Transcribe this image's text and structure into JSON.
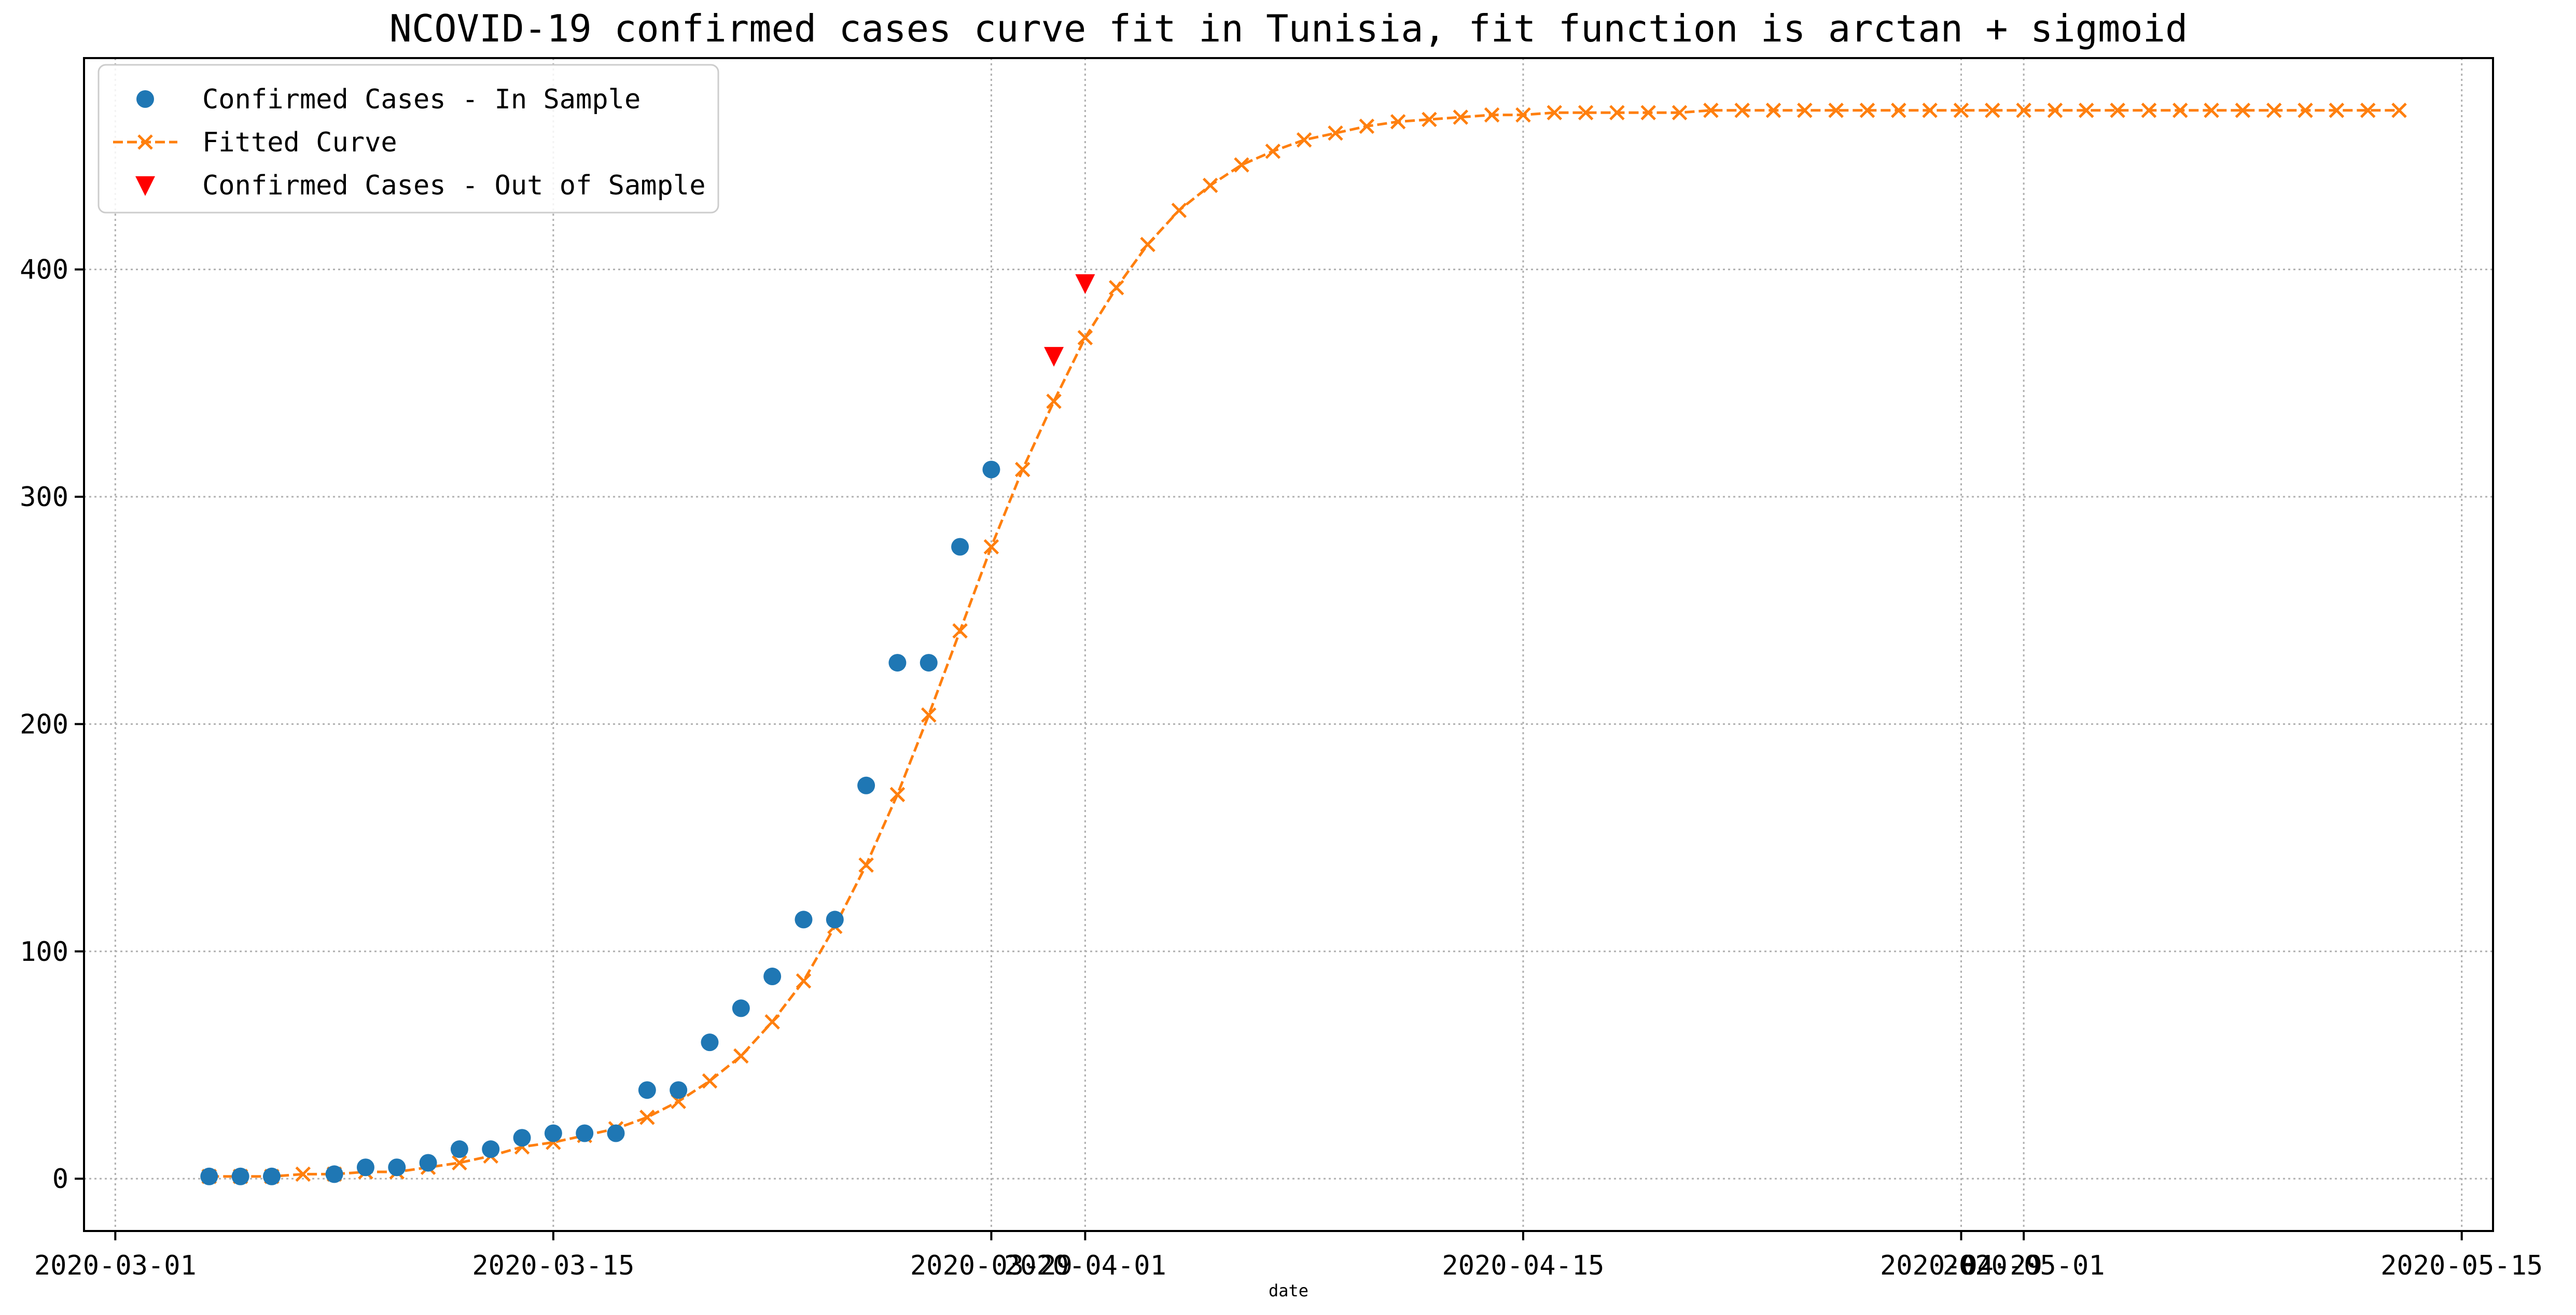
{
  "chart_data": {
    "type": "line",
    "title": "NCOVID-19 confirmed cases curve fit in Tunisia, fit function is arctan + sigmoid",
    "xlabel": "date",
    "ylabel": "",
    "x_axis_type": "date",
    "xlim": [
      "2020-02-29",
      "2020-05-16"
    ],
    "ylim": [
      -23,
      493
    ],
    "grid": true,
    "legend_position": "top-left",
    "x_ticks": [
      {
        "date": "2020-03-01",
        "label": "2020-03-01"
      },
      {
        "date": "2020-03-15",
        "label": "2020-03-15"
      },
      {
        "date": "2020-03-29",
        "label": "2020-03-29"
      },
      {
        "date": "2020-04-01",
        "label": "2020-04-01"
      },
      {
        "date": "2020-04-15",
        "label": "2020-04-15"
      },
      {
        "date": "2020-04-29",
        "label": "2020-04-29"
      },
      {
        "date": "2020-05-01",
        "label": "2020-05-01"
      },
      {
        "date": "2020-05-15",
        "label": "2020-05-15"
      }
    ],
    "y_ticks": [
      0,
      100,
      200,
      300,
      400
    ],
    "series": [
      {
        "name": "Confirmed Cases - In Sample",
        "kind": "scatter",
        "marker": "circle",
        "color": "#1f77b4",
        "points": [
          [
            "2020-03-04",
            1
          ],
          [
            "2020-03-05",
            1
          ],
          [
            "2020-03-06",
            1
          ],
          [
            "2020-03-08",
            2
          ],
          [
            "2020-03-09",
            5
          ],
          [
            "2020-03-10",
            5
          ],
          [
            "2020-03-11",
            7
          ],
          [
            "2020-03-12",
            13
          ],
          [
            "2020-03-13",
            13
          ],
          [
            "2020-03-14",
            18
          ],
          [
            "2020-03-15",
            20
          ],
          [
            "2020-03-16",
            20
          ],
          [
            "2020-03-17",
            20
          ],
          [
            "2020-03-18",
            39
          ],
          [
            "2020-03-19",
            39
          ],
          [
            "2020-03-20",
            60
          ],
          [
            "2020-03-21",
            75
          ],
          [
            "2020-03-22",
            89
          ],
          [
            "2020-03-23",
            114
          ],
          [
            "2020-03-24",
            114
          ],
          [
            "2020-03-25",
            173
          ],
          [
            "2020-03-26",
            227
          ],
          [
            "2020-03-27",
            227
          ],
          [
            "2020-03-28",
            278
          ],
          [
            "2020-03-29",
            312
          ]
        ]
      },
      {
        "name": "Fitted Curve",
        "kind": "line",
        "marker": "x",
        "line_style": "dashed",
        "color": "#ff7f0e",
        "points": [
          [
            "2020-03-04",
            1
          ],
          [
            "2020-03-05",
            1
          ],
          [
            "2020-03-06",
            1
          ],
          [
            "2020-03-07",
            2
          ],
          [
            "2020-03-08",
            2
          ],
          [
            "2020-03-09",
            3
          ],
          [
            "2020-03-10",
            3
          ],
          [
            "2020-03-11",
            5
          ],
          [
            "2020-03-12",
            7
          ],
          [
            "2020-03-13",
            10
          ],
          [
            "2020-03-14",
            14
          ],
          [
            "2020-03-15",
            16
          ],
          [
            "2020-03-16",
            19
          ],
          [
            "2020-03-17",
            22
          ],
          [
            "2020-03-18",
            27
          ],
          [
            "2020-03-19",
            34
          ],
          [
            "2020-03-20",
            43
          ],
          [
            "2020-03-21",
            54
          ],
          [
            "2020-03-22",
            69
          ],
          [
            "2020-03-23",
            87
          ],
          [
            "2020-03-24",
            111
          ],
          [
            "2020-03-25",
            138
          ],
          [
            "2020-03-26",
            169
          ],
          [
            "2020-03-27",
            204
          ],
          [
            "2020-03-28",
            241
          ],
          [
            "2020-03-29",
            278
          ],
          [
            "2020-03-30",
            312
          ],
          [
            "2020-03-31",
            342
          ],
          [
            "2020-04-01",
            370
          ],
          [
            "2020-04-02",
            392
          ],
          [
            "2020-04-03",
            411
          ],
          [
            "2020-04-04",
            426
          ],
          [
            "2020-04-05",
            437
          ],
          [
            "2020-04-06",
            446
          ],
          [
            "2020-04-07",
            452
          ],
          [
            "2020-04-08",
            457
          ],
          [
            "2020-04-09",
            460
          ],
          [
            "2020-04-10",
            463
          ],
          [
            "2020-04-11",
            465
          ],
          [
            "2020-04-12",
            466
          ],
          [
            "2020-04-13",
            467
          ],
          [
            "2020-04-14",
            468
          ],
          [
            "2020-04-15",
            468
          ],
          [
            "2020-04-16",
            469
          ],
          [
            "2020-04-17",
            469
          ],
          [
            "2020-04-18",
            469
          ],
          [
            "2020-04-19",
            469
          ],
          [
            "2020-04-20",
            469
          ],
          [
            "2020-04-21",
            470
          ],
          [
            "2020-04-22",
            470
          ],
          [
            "2020-04-23",
            470
          ],
          [
            "2020-04-24",
            470
          ],
          [
            "2020-04-25",
            470
          ],
          [
            "2020-04-26",
            470
          ],
          [
            "2020-04-27",
            470
          ],
          [
            "2020-04-28",
            470
          ],
          [
            "2020-04-29",
            470
          ],
          [
            "2020-04-30",
            470
          ],
          [
            "2020-05-01",
            470
          ],
          [
            "2020-05-02",
            470
          ],
          [
            "2020-05-03",
            470
          ],
          [
            "2020-05-04",
            470
          ],
          [
            "2020-05-05",
            470
          ],
          [
            "2020-05-06",
            470
          ],
          [
            "2020-05-07",
            470
          ],
          [
            "2020-05-08",
            470
          ],
          [
            "2020-05-09",
            470
          ],
          [
            "2020-05-10",
            470
          ],
          [
            "2020-05-11",
            470
          ],
          [
            "2020-05-12",
            470
          ],
          [
            "2020-05-13",
            470
          ]
        ]
      },
      {
        "name": "Confirmed Cases - Out of Sample",
        "kind": "scatter",
        "marker": "triangle-down",
        "color": "#ff0000",
        "points": [
          [
            "2020-03-31",
            362
          ],
          [
            "2020-04-01",
            394
          ]
        ]
      }
    ]
  }
}
